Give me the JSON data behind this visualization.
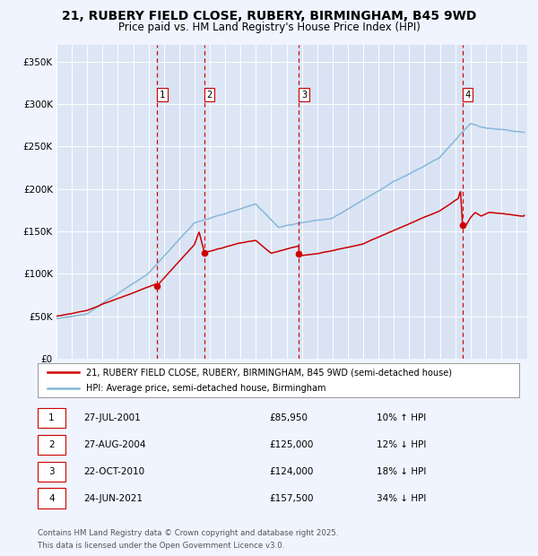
{
  "title_line1": "21, RUBERY FIELD CLOSE, RUBERY, BIRMINGHAM, B45 9WD",
  "title_line2": "Price paid vs. HM Land Registry's House Price Index (HPI)",
  "bg_color": "#f0f4ff",
  "plot_bg_color": "#dde6f5",
  "grid_color": "#ffffff",
  "red_color": "#cc0000",
  "blue_color": "#88b8d8",
  "sale_markers": [
    {
      "label": 1,
      "date_num": 2001.57,
      "value": 85950
    },
    {
      "label": 2,
      "date_num": 2004.65,
      "value": 125000
    },
    {
      "label": 3,
      "date_num": 2010.81,
      "value": 124000
    },
    {
      "label": 4,
      "date_num": 2021.48,
      "value": 157500
    }
  ],
  "table_rows": [
    {
      "num": 1,
      "date": "27-JUL-2001",
      "price": "£85,950",
      "change": "10% ↑ HPI"
    },
    {
      "num": 2,
      "date": "27-AUG-2004",
      "price": "£125,000",
      "change": "12% ↓ HPI"
    },
    {
      "num": 3,
      "date": "22-OCT-2010",
      "price": "£124,000",
      "change": "18% ↓ HPI"
    },
    {
      "num": 4,
      "date": "24-JUN-2021",
      "price": "£157,500",
      "change": "34% ↓ HPI"
    }
  ],
  "legend_line1": "21, RUBERY FIELD CLOSE, RUBERY, BIRMINGHAM, B45 9WD (semi-detached house)",
  "legend_line2": "HPI: Average price, semi-detached house, Birmingham",
  "footnote_line1": "Contains HM Land Registry data © Crown copyright and database right 2025.",
  "footnote_line2": "This data is licensed under the Open Government Licence v3.0.",
  "ylim": [
    0,
    370000
  ],
  "yticks": [
    0,
    50000,
    100000,
    150000,
    200000,
    250000,
    300000,
    350000
  ],
  "xlim_start": 1995.0,
  "xlim_end": 2025.7
}
